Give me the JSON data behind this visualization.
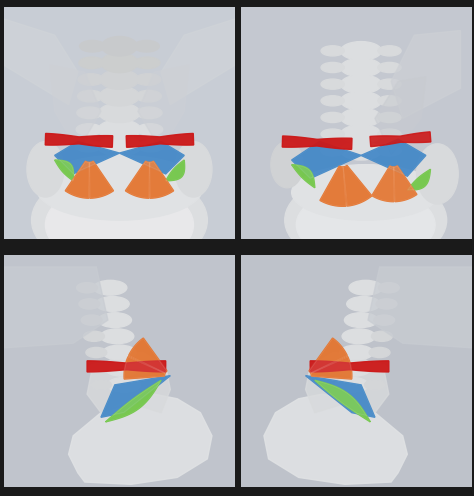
{
  "figure_width": 4.74,
  "figure_height": 4.96,
  "dpi": 100,
  "bg_color": "#1a1a1a",
  "panel_border": "#111111",
  "panel_bg_tl": "#b8bec8",
  "panel_bg_tr": "#b0b8c4",
  "panel_bg_bl": "#b0b8c4",
  "panel_bg_br": "#b0b8c4",
  "colors": {
    "orange": "#E06010",
    "blue": "#2878C0",
    "green": "#60C030",
    "red": "#CC1818",
    "bone_light": "#e8e8e8",
    "bone_mid": "#d0d2d5",
    "bone_dark": "#b8bcc0",
    "bone_shadow": "#9aa0a8"
  }
}
